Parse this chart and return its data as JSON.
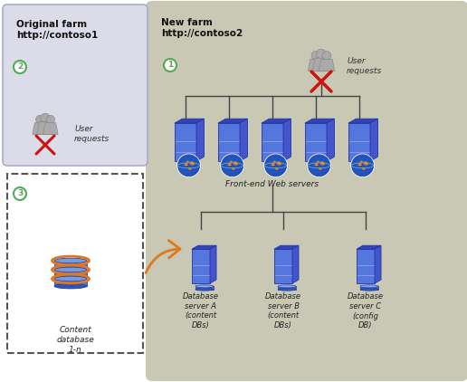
{
  "fig_width": 5.16,
  "fig_height": 4.22,
  "dpi": 100,
  "bg_color": "#ffffff",
  "new_farm_bg": "#c8c8b4",
  "original_farm_bg": "#dcdce8",
  "title_original": "Original farm\nhttp://contoso1",
  "title_new": "New farm\nhttp://contoso2",
  "label_user_requests": "User\nrequests",
  "label_frontend": "Front-end Web servers",
  "label_db_a": "Database\nserver A\n(content\nDBs)",
  "label_db_b": "Database\nserver B\n(content\nDBs)",
  "label_db_c": "Database\nserver C\n(config\nDB)",
  "label_content_db": "Content\ndatabase\n1-n",
  "step_color": "#55aa55",
  "red_x_color": "#cc1111",
  "arrow_orange": "#e07820",
  "line_color": "#444444",
  "font_size_title": 7.5,
  "font_size_label": 6.5,
  "font_size_small": 6.0,
  "font_size_step": 6.5
}
